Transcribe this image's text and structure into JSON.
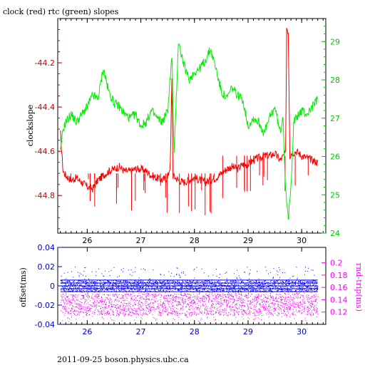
{
  "chart_data": [
    {
      "type": "line",
      "title": "clock (red) rtc (green) slopes",
      "xlabel": "",
      "ylabel": "clockslope",
      "y2label": "",
      "x_ticks": [
        "26",
        "27",
        "28",
        "29",
        "30"
      ],
      "y_ticks": [
        "-44.2",
        "-44.4",
        "-44.6",
        "-44.8"
      ],
      "y2_ticks": [
        "24",
        "25",
        "26",
        "27",
        "28",
        "29"
      ],
      "xlim": [
        25.45,
        30.45
      ],
      "ylim": [
        -44.97,
        -44.0
      ],
      "y2lim": [
        24.0,
        29.6
      ],
      "colors": {
        "red": "#ff0000",
        "green": "#00ee00",
        "axis_left": "#cc0000",
        "axis_right": "#00cc00"
      },
      "series": [
        {
          "name": "clock",
          "axis": "left",
          "color": "#ff0000",
          "x": [
            25.5,
            25.55,
            25.6,
            25.7,
            25.8,
            25.9,
            26.0,
            26.1,
            26.2,
            26.3,
            26.4,
            26.5,
            26.6,
            26.7,
            26.8,
            26.9,
            27.0,
            27.1,
            27.2,
            27.3,
            27.4,
            27.5,
            27.55,
            27.58,
            27.6,
            27.7,
            27.8,
            27.9,
            28.0,
            28.1,
            28.2,
            28.3,
            28.4,
            28.5,
            28.6,
            28.7,
            28.8,
            28.9,
            29.0,
            29.1,
            29.2,
            29.3,
            29.4,
            29.5,
            29.6,
            29.7,
            29.72,
            29.75,
            29.78,
            29.8,
            29.9,
            30.0,
            30.1,
            30.2,
            30.3
          ],
          "y": [
            -44.52,
            -44.69,
            -44.71,
            -44.73,
            -44.72,
            -44.74,
            -44.76,
            -44.77,
            -44.73,
            -44.71,
            -44.69,
            -44.68,
            -44.67,
            -44.69,
            -44.69,
            -44.68,
            -44.68,
            -44.69,
            -44.71,
            -44.72,
            -44.73,
            -44.72,
            -44.66,
            -44.26,
            -44.71,
            -44.73,
            -44.74,
            -44.73,
            -44.72,
            -44.73,
            -44.74,
            -44.73,
            -44.72,
            -44.7,
            -44.68,
            -44.67,
            -44.68,
            -44.66,
            -44.66,
            -44.64,
            -44.63,
            -44.62,
            -44.62,
            -44.61,
            -44.64,
            -44.61,
            -44.04,
            -44.06,
            -44.62,
            -44.61,
            -44.6,
            -44.62,
            -44.63,
            -44.64,
            -44.65
          ]
        },
        {
          "name": "rtc",
          "axis": "right",
          "color": "#00ee00",
          "x": [
            25.5,
            25.55,
            25.6,
            25.7,
            25.8,
            25.9,
            26.0,
            26.1,
            26.2,
            26.25,
            26.3,
            26.4,
            26.5,
            26.6,
            26.7,
            26.8,
            26.9,
            27.0,
            27.1,
            27.2,
            27.3,
            27.4,
            27.5,
            27.55,
            27.58,
            27.62,
            27.7,
            27.8,
            27.9,
            28.0,
            28.1,
            28.2,
            28.3,
            28.4,
            28.5,
            28.6,
            28.7,
            28.8,
            28.9,
            29.0,
            29.1,
            29.2,
            29.3,
            29.4,
            29.5,
            29.6,
            29.65,
            29.7,
            29.75,
            29.8,
            29.85,
            29.9,
            30.0,
            30.1,
            30.2,
            30.3
          ],
          "y": [
            26.1,
            26.7,
            26.9,
            27.1,
            26.9,
            27.1,
            27.3,
            27.6,
            27.5,
            27.9,
            28.3,
            27.7,
            27.4,
            27.3,
            27.1,
            27.0,
            27.1,
            26.8,
            26.9,
            27.2,
            27.0,
            26.9,
            27.2,
            28.1,
            28.6,
            26.0,
            29.0,
            28.4,
            28.0,
            28.2,
            28.3,
            28.5,
            28.8,
            28.3,
            27.7,
            27.5,
            27.8,
            27.6,
            27.5,
            26.8,
            27.0,
            26.9,
            26.6,
            27.0,
            27.3,
            26.6,
            27.1,
            25.2,
            24.3,
            25.2,
            26.9,
            27.0,
            27.2,
            27.1,
            27.3,
            27.5
          ]
        }
      ]
    },
    {
      "type": "scatter",
      "xlabel": "",
      "ylabel": "offset(ms)",
      "y2label": "rnd-trip(ms)",
      "x_ticks": [
        "26",
        "27",
        "28",
        "29",
        "30"
      ],
      "y_ticks": [
        "0.04",
        "0.02",
        "0",
        "-0.02",
        "-0.04"
      ],
      "y2_ticks": [
        "0.2",
        "0.18",
        "0.16",
        "0.14",
        "0.12"
      ],
      "xlim": [
        25.45,
        30.45
      ],
      "ylim": [
        -0.04,
        0.04
      ],
      "y2lim": [
        0.1,
        0.225
      ],
      "colors": {
        "blue": "#0000ff",
        "magenta": "#ff00ff"
      },
      "series": [
        {
          "name": "offset",
          "axis": "left",
          "color": "#0000ff",
          "x_range": [
            25.5,
            30.3
          ],
          "band": [
            -0.006,
            0.006
          ],
          "outlier_band": [
            -0.012,
            0.02
          ]
        },
        {
          "name": "rnd-trip",
          "axis": "right",
          "color": "#ff00ff",
          "x_range": [
            25.5,
            30.3
          ],
          "band": [
            0.115,
            0.15
          ],
          "outlier_band": [
            0.105,
            0.165
          ]
        }
      ]
    }
  ],
  "footer": "2011-09-25  boson.physics.ubc.ca"
}
